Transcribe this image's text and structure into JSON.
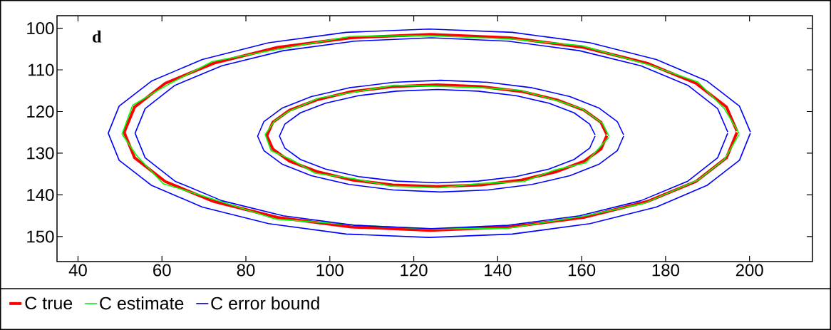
{
  "chart_data": {
    "type": "line",
    "annotations": [
      "d"
    ],
    "xlim": [
      35,
      215
    ],
    "ylim": [
      156,
      97
    ],
    "xticks": [
      40,
      60,
      80,
      100,
      120,
      140,
      160,
      180,
      200
    ],
    "yticks": [
      100,
      110,
      120,
      130,
      140,
      150
    ],
    "legend": "bottom",
    "marker": "none",
    "line_style": "solid",
    "grid": false,
    "series": [
      {
        "name": "C true",
        "color": "#ff0000",
        "x": [
          197,
          194.5,
          187.2,
          175.6,
          160.5,
          142.9,
          124,
          105.1,
          87.5,
          72.4,
          60.8,
          53.5,
          51,
          53.5,
          60.8,
          72.4,
          87.5,
          105.1,
          124,
          142.9,
          160.5,
          175.6,
          187.2,
          194.5,
          197
        ],
        "values": [
          125,
          131.1,
          136.8,
          141.6,
          145.4,
          147.7,
          148.5,
          147.7,
          145.4,
          141.6,
          136.8,
          131.1,
          125,
          118.9,
          113.2,
          108.4,
          104.6,
          102.3,
          101.5,
          102.3,
          104.6,
          108.4,
          113.2,
          118.9,
          124.7
        ]
      },
      {
        "color": "#ff0000",
        "x": [
          166,
          164.6,
          160.6,
          154.1,
          145.8,
          136,
          125.5,
          115,
          105.2,
          96.9,
          90.4,
          86.4,
          85,
          86.4,
          90.4,
          96.9,
          105.2,
          115,
          125.5,
          136,
          145.8,
          154.1,
          160.6,
          164.6,
          166
        ],
        "values": [
          125.8,
          129,
          131.9,
          134.4,
          136.4,
          137.6,
          138,
          137.6,
          136.4,
          134.4,
          131.9,
          129,
          125.8,
          122.6,
          119.7,
          117.2,
          115.2,
          114,
          113.6,
          114,
          115.2,
          117.2,
          119.7,
          122.6,
          125.5
        ]
      },
      {
        "name": "C estimate",
        "color": "#00ff00",
        "x": [
          197.5,
          194,
          187.8,
          175,
          161,
          142.5,
          124.5,
          105.5,
          87,
          72.8,
          60.3,
          54,
          50.5,
          53,
          61.3,
          72,
          88,
          104.7,
          123.5,
          143.3,
          160,
          176,
          187.7,
          194,
          197.5
        ],
        "values": [
          125.5,
          131.5,
          136.4,
          142,
          145,
          148,
          148.2,
          147.2,
          145.8,
          141.2,
          137.3,
          130.6,
          125.4,
          118.5,
          113.6,
          108,
          105,
          102,
          101.8,
          102.6,
          104.2,
          108.8,
          112.9,
          119.3,
          125.2
        ]
      },
      {
        "color": "#00ff00",
        "x": [
          166.5,
          164.2,
          161,
          153.7,
          146.2,
          135.6,
          125.9,
          114.6,
          105.6,
          96.5,
          90.8,
          86,
          84.6,
          86.8,
          90,
          97.3,
          104.8,
          115.4,
          125.1,
          136.4,
          145.4,
          154.5,
          160.2,
          165,
          166.5
        ],
        "values": [
          126.2,
          128.7,
          132.3,
          134,
          136.8,
          137.3,
          138.3,
          137.9,
          136.1,
          134.8,
          131.5,
          129.4,
          125.5,
          122.3,
          120.1,
          116.8,
          115.5,
          113.7,
          113.9,
          114.3,
          114.9,
          117.5,
          119.4,
          122.9,
          125.9
        ]
      },
      {
        "name": "C error bound",
        "color": "#0000ff",
        "x": [
          200.2,
          197.6,
          189.9,
          177.8,
          162,
          143.5,
          123.7,
          103.9,
          85.4,
          69.6,
          57.5,
          49.8,
          47.2,
          49.8,
          57.5,
          69.6,
          85.4,
          103.9,
          123.7,
          143.5,
          162,
          177.8,
          189.9,
          197.6,
          200.2
        ],
        "values": [
          125.2,
          131.7,
          137.7,
          142.9,
          146.9,
          149.4,
          150.2,
          149.4,
          146.9,
          142.9,
          137.7,
          131.7,
          125.2,
          118.7,
          112.7,
          107.5,
          103.5,
          101,
          100.2,
          101,
          103.5,
          107.5,
          112.7,
          118.7,
          124.9
        ]
      },
      {
        "color": "#0000ff",
        "x": [
          194.8,
          192.4,
          185.3,
          174.1,
          159.5,
          142.5,
          124.2,
          105.9,
          88.9,
          74.3,
          63.1,
          56,
          53.6,
          56,
          63.1,
          74.3,
          88.9,
          105.9,
          124.2,
          142.5,
          159.5,
          174.1,
          185.3,
          192.4,
          194.8
        ],
        "values": [
          125.2,
          131.1,
          136.7,
          141.4,
          145,
          147.3,
          148.1,
          147.3,
          145,
          141.4,
          136.7,
          131.1,
          125.2,
          119.3,
          113.7,
          109,
          105.4,
          103.1,
          102.3,
          103.1,
          105.4,
          109,
          113.7,
          119.3,
          124.9
        ]
      },
      {
        "color": "#0000ff",
        "x": [
          170,
          168.5,
          164.2,
          157.2,
          148.2,
          137.7,
          126.4,
          115.1,
          104.6,
          95.6,
          88.6,
          84.3,
          82.8,
          84.3,
          88.6,
          95.6,
          104.6,
          115.1,
          126.4,
          137.7,
          148.2,
          157.2,
          164.2,
          168.5,
          170
        ],
        "values": [
          125.9,
          129.4,
          132.6,
          135.4,
          137.5,
          138.8,
          139.3,
          138.8,
          137.5,
          135.4,
          132.6,
          129.4,
          125.9,
          122.4,
          119.2,
          116.4,
          114.3,
          113,
          112.5,
          113,
          114.3,
          116.4,
          119.2,
          122.4,
          125.6
        ]
      },
      {
        "color": "#0000ff",
        "x": [
          163.2,
          161.9,
          158.2,
          152.2,
          144.4,
          135.3,
          125.6,
          115.9,
          106.8,
          99,
          93,
          89.3,
          88,
          89.3,
          93,
          99,
          106.8,
          115.9,
          125.6,
          135.3,
          144.4,
          152.2,
          158.2,
          161.9,
          163.2
        ],
        "values": [
          125.9,
          128.8,
          131.5,
          133.8,
          135.6,
          136.7,
          137.1,
          136.7,
          135.6,
          133.8,
          131.5,
          128.8,
          125.9,
          123,
          120.3,
          118,
          116.2,
          115.1,
          114.7,
          115.1,
          116.2,
          118,
          120.3,
          123,
          125.6
        ]
      }
    ]
  }
}
